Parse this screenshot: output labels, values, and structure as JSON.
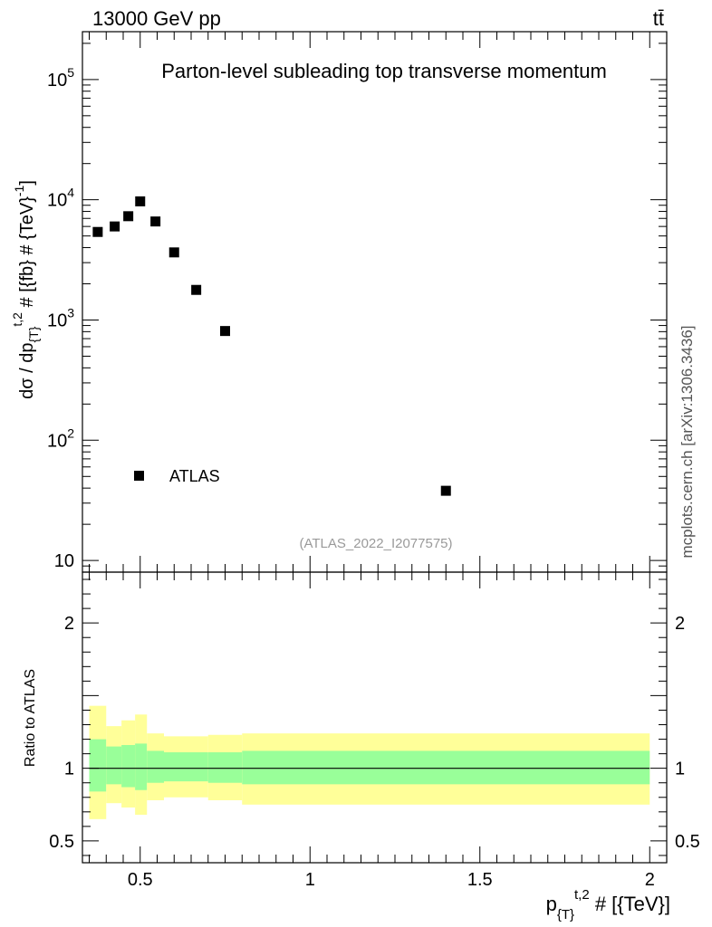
{
  "header": {
    "left": "13000 GeV pp",
    "right": "tt̄"
  },
  "side_label": "mcplots.cern.ch [arXiv:1306.3436]",
  "chart_data": [
    {
      "type": "scatter",
      "title": "Parton-level subleading top transverse momentum",
      "watermark": "(ATLAS_2022_I2077575)",
      "ylabel_main": "dσ / dp",
      "ylabel_sub": "{T}",
      "ylabel_sup": "t,2",
      "ylabel_rest": " # [{fb} # {TeV}",
      "ylabel_exp": "-1",
      "ylabel_close": "]",
      "yscale": "log",
      "ylim": [
        8,
        250000
      ],
      "xlim": [
        0.33,
        2.05
      ],
      "ytick_labels": [
        {
          "value": 10,
          "label": "10"
        },
        {
          "value": 100,
          "label": "10",
          "exp": "2"
        },
        {
          "value": 1000,
          "label": "10",
          "exp": "3"
        },
        {
          "value": 10000,
          "label": "10",
          "exp": "4"
        },
        {
          "value": 100000,
          "label": "10",
          "exp": "5"
        }
      ],
      "legend": [
        {
          "name": "ATLAS",
          "marker": "square",
          "placement": "lower-left"
        }
      ],
      "series": [
        {
          "name": "ATLAS",
          "points": [
            {
              "x": 0.375,
              "y": 5400
            },
            {
              "x": 0.425,
              "y": 6000
            },
            {
              "x": 0.465,
              "y": 7300
            },
            {
              "x": 0.5,
              "y": 9700
            },
            {
              "x": 0.545,
              "y": 6600
            },
            {
              "x": 0.6,
              "y": 3650
            },
            {
              "x": 0.665,
              "y": 1780
            },
            {
              "x": 0.75,
              "y": 810
            },
            {
              "x": 1.4,
              "y": 38
            }
          ]
        }
      ]
    },
    {
      "type": "area",
      "ylabel": "Ratio to ATLAS",
      "xlabel_main": "p",
      "xlabel_sub": "{T}",
      "xlabel_sup": "t,2",
      "xlabel_rest": " # [{TeV}]",
      "xlim": [
        0.33,
        2.05
      ],
      "ylim": [
        0.35,
        2.35
      ],
      "xtick_labels": [
        {
          "value": 0.5,
          "label": "0.5"
        },
        {
          "value": 1,
          "label": "1"
        },
        {
          "value": 1.5,
          "label": "1.5"
        },
        {
          "value": 2,
          "label": "2"
        }
      ],
      "ytick_labels": [
        {
          "value": 0.5,
          "label": "0.5"
        },
        {
          "value": 1,
          "label": "1"
        },
        {
          "value": 2,
          "label": "2"
        }
      ],
      "reference_line": 1,
      "colors": {
        "outer_band": "#ffff99",
        "inner_band": "#99ff99"
      },
      "bins": [
        {
          "x0": 0.35,
          "x1": 0.4,
          "inner": [
            0.84,
            1.2
          ],
          "outer": [
            0.65,
            1.43
          ]
        },
        {
          "x0": 0.4,
          "x1": 0.445,
          "inner": [
            0.89,
            1.15
          ],
          "outer": [
            0.76,
            1.29
          ]
        },
        {
          "x0": 0.445,
          "x1": 0.485,
          "inner": [
            0.87,
            1.16
          ],
          "outer": [
            0.73,
            1.33
          ]
        },
        {
          "x0": 0.485,
          "x1": 0.52,
          "inner": [
            0.85,
            1.17
          ],
          "outer": [
            0.68,
            1.37
          ]
        },
        {
          "x0": 0.52,
          "x1": 0.57,
          "inner": [
            0.9,
            1.12
          ],
          "outer": [
            0.78,
            1.24
          ]
        },
        {
          "x0": 0.57,
          "x1": 0.63,
          "inner": [
            0.91,
            1.11
          ],
          "outer": [
            0.8,
            1.22
          ]
        },
        {
          "x0": 0.63,
          "x1": 0.7,
          "inner": [
            0.91,
            1.11
          ],
          "outer": [
            0.8,
            1.22
          ]
        },
        {
          "x0": 0.7,
          "x1": 0.8,
          "inner": [
            0.9,
            1.11
          ],
          "outer": [
            0.78,
            1.23
          ]
        },
        {
          "x0": 0.8,
          "x1": 2.0,
          "inner": [
            0.89,
            1.12
          ],
          "outer": [
            0.75,
            1.24
          ]
        }
      ]
    }
  ]
}
